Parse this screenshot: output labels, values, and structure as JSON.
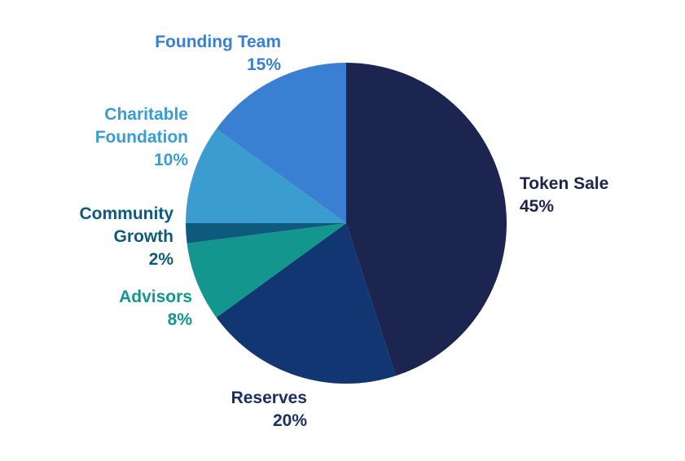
{
  "chart_data": {
    "type": "pie",
    "title": "",
    "slices": [
      {
        "label": [
          "Token Sale"
        ],
        "value_label": "45%",
        "value": 45,
        "color": "#1b2550"
      },
      {
        "label": [
          "Reserves"
        ],
        "value_label": "20%",
        "value": 20,
        "color": "#123672"
      },
      {
        "label": [
          "Advisors"
        ],
        "value_label": "8%",
        "value": 8,
        "color": "#12968d"
      },
      {
        "label": [
          "Community",
          "Growth"
        ],
        "value_label": "2%",
        "value": 2,
        "color": "#0d5a7c"
      },
      {
        "label": [
          "Charitable",
          "Foundation"
        ],
        "value_label": "10%",
        "value": 10,
        "color": "#3a9ccf"
      },
      {
        "label": [
          "Founding Team"
        ],
        "value_label": "15%",
        "value": 15,
        "color": "#3a80d2"
      }
    ],
    "label_colors": {
      "Token Sale": "#1b2550",
      "Reserves": "#1b2f63",
      "Advisors": "#12968d",
      "Community Growth": "#0d5a7c",
      "Charitable Foundation": "#3a9ccf",
      "Founding Team": "#3a80d2"
    },
    "start_angle_deg": 0,
    "direction": "clockwise",
    "legend": "none",
    "labels_outside": true
  }
}
